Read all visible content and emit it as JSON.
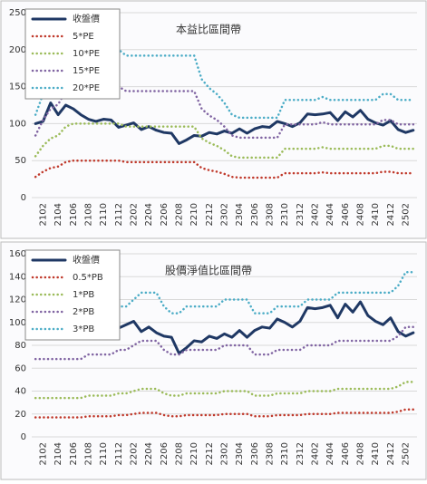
{
  "chart_data": [
    {
      "type": "line",
      "title": "本益比區間帶",
      "categories": [
        null,
        "2102",
        null,
        "2104",
        null,
        "2106",
        null,
        "2108",
        null,
        "2110",
        null,
        "2112",
        null,
        "2202",
        null,
        "2204",
        null,
        "2206",
        null,
        "2208",
        null,
        "2210",
        null,
        "2212",
        null,
        "2302",
        null,
        "2304",
        null,
        "2306",
        null,
        "2308",
        null,
        "2310",
        null,
        "2312",
        null,
        "2402",
        null,
        "2404",
        null,
        "2406",
        null,
        "2408",
        null,
        "2410",
        null,
        "2412",
        null,
        "2502",
        null
      ],
      "ylim": [
        0,
        250
      ],
      "yticks": [
        0,
        50,
        100,
        150,
        200,
        250
      ],
      "grid": true,
      "series": [
        {
          "name": "收盤價",
          "color": "#1f3864",
          "values": [
            100,
            103,
            128,
            112,
            125,
            120,
            112,
            106,
            103,
            106,
            105,
            95,
            98,
            101,
            92,
            96,
            91,
            88,
            87,
            73,
            78,
            84,
            83,
            88,
            86,
            90,
            87,
            93,
            87,
            93,
            96,
            95,
            103,
            100,
            96,
            101,
            113,
            112,
            113,
            115,
            104,
            116,
            109,
            118,
            106,
            101,
            98,
            104,
            92,
            88,
            91
          ]
        },
        {
          "name": "5*PE",
          "color": "#c0392b",
          "values": [
            28,
            35,
            40,
            42,
            48,
            50,
            50,
            50,
            50,
            50,
            50,
            50,
            48,
            48,
            48,
            48,
            48,
            48,
            48,
            48,
            48,
            48,
            40,
            37,
            35,
            32,
            28,
            27,
            27,
            27,
            27,
            27,
            27,
            33,
            33,
            33,
            33,
            33,
            34,
            33,
            33,
            33,
            33,
            33,
            33,
            33,
            35,
            35,
            33,
            33,
            33
          ]
        },
        {
          "name": "10*PE",
          "color": "#9bbb59",
          "values": [
            56,
            70,
            80,
            84,
            96,
            100,
            100,
            100,
            100,
            100,
            100,
            100,
            96,
            96,
            96,
            96,
            96,
            96,
            96,
            96,
            96,
            96,
            80,
            74,
            70,
            64,
            56,
            54,
            54,
            54,
            54,
            54,
            54,
            66,
            66,
            66,
            66,
            66,
            68,
            66,
            66,
            66,
            66,
            66,
            66,
            66,
            70,
            70,
            66,
            66,
            66
          ]
        },
        {
          "name": "15*PE",
          "color": "#8064a2",
          "values": [
            84,
            105,
            120,
            126,
            144,
            150,
            150,
            150,
            150,
            150,
            150,
            150,
            144,
            144,
            144,
            144,
            144,
            144,
            144,
            144,
            144,
            144,
            120,
            111,
            105,
            96,
            84,
            81,
            81,
            81,
            81,
            81,
            81,
            99,
            99,
            99,
            99,
            99,
            102,
            99,
            99,
            99,
            99,
            99,
            99,
            99,
            105,
            105,
            99,
            99,
            99
          ]
        },
        {
          "name": "20*PE",
          "color": "#4bacc6",
          "values": [
            112,
            140,
            160,
            168,
            192,
            200,
            200,
            200,
            200,
            200,
            200,
            200,
            192,
            192,
            192,
            192,
            192,
            192,
            192,
            192,
            192,
            192,
            160,
            148,
            140,
            128,
            112,
            108,
            108,
            108,
            108,
            108,
            108,
            132,
            132,
            132,
            132,
            132,
            136,
            132,
            132,
            132,
            132,
            132,
            132,
            132,
            140,
            140,
            132,
            132,
            132
          ]
        }
      ]
    },
    {
      "type": "line",
      "title": "股價淨值比區間帶",
      "categories": [
        null,
        "2102",
        null,
        "2104",
        null,
        "2106",
        null,
        "2108",
        null,
        "2110",
        null,
        "2112",
        null,
        "2202",
        null,
        "2204",
        null,
        "2206",
        null,
        "2208",
        null,
        "2210",
        null,
        "2212",
        null,
        "2302",
        null,
        "2304",
        null,
        "2306",
        null,
        "2308",
        null,
        "2310",
        null,
        "2312",
        null,
        "2402",
        null,
        "2404",
        null,
        "2406",
        null,
        "2408",
        null,
        "2410",
        null,
        "2412",
        null,
        "2502",
        null
      ],
      "ylim": [
        0,
        160
      ],
      "yticks": [
        0,
        20,
        40,
        60,
        80,
        100,
        120,
        140,
        160
      ],
      "grid": true,
      "series": [
        {
          "name": "收盤價",
          "color": "#1f3864",
          "values": [
            100,
            103,
            128,
            112,
            125,
            120,
            112,
            106,
            103,
            106,
            105,
            95,
            98,
            101,
            92,
            96,
            91,
            88,
            87,
            73,
            78,
            84,
            83,
            88,
            86,
            90,
            87,
            93,
            87,
            93,
            96,
            95,
            103,
            100,
            96,
            101,
            113,
            112,
            113,
            115,
            104,
            116,
            109,
            118,
            106,
            101,
            98,
            104,
            92,
            88,
            91
          ]
        },
        {
          "name": "0.5*PB",
          "color": "#c0392b",
          "values": [
            17,
            17,
            17,
            17,
            17,
            17,
            17,
            18,
            18,
            18,
            18,
            19,
            19,
            20,
            21,
            21,
            21,
            19,
            18,
            18,
            19,
            19,
            19,
            19,
            19,
            20,
            20,
            20,
            20,
            18,
            18,
            18,
            19,
            19,
            19,
            19,
            20,
            20,
            20,
            20,
            21,
            21,
            21,
            21,
            21,
            21,
            21,
            21,
            22,
            24,
            24
          ]
        },
        {
          "name": "1*PB",
          "color": "#9bbb59",
          "values": [
            34,
            34,
            34,
            34,
            34,
            34,
            34,
            36,
            36,
            36,
            36,
            38,
            38,
            40,
            42,
            42,
            42,
            38,
            36,
            36,
            38,
            38,
            38,
            38,
            38,
            40,
            40,
            40,
            40,
            36,
            36,
            36,
            38,
            38,
            38,
            38,
            40,
            40,
            40,
            40,
            42,
            42,
            42,
            42,
            42,
            42,
            42,
            42,
            44,
            48,
            48
          ]
        },
        {
          "name": "2*PB",
          "color": "#8064a2",
          "values": [
            68,
            68,
            68,
            68,
            68,
            68,
            68,
            72,
            72,
            72,
            72,
            76,
            76,
            80,
            84,
            84,
            84,
            76,
            72,
            72,
            76,
            76,
            76,
            76,
            76,
            80,
            80,
            80,
            80,
            72,
            72,
            72,
            76,
            76,
            76,
            76,
            80,
            80,
            80,
            80,
            84,
            84,
            84,
            84,
            84,
            84,
            84,
            84,
            88,
            96,
            96
          ]
        },
        {
          "name": "3*PB",
          "color": "#4bacc6",
          "values": [
            102,
            102,
            102,
            102,
            102,
            102,
            102,
            108,
            108,
            108,
            108,
            114,
            114,
            120,
            126,
            126,
            126,
            114,
            108,
            108,
            114,
            114,
            114,
            114,
            114,
            120,
            120,
            120,
            120,
            108,
            108,
            108,
            114,
            114,
            114,
            114,
            120,
            120,
            120,
            120,
            126,
            126,
            126,
            126,
            126,
            126,
            126,
            126,
            132,
            144,
            144
          ]
        }
      ]
    }
  ]
}
